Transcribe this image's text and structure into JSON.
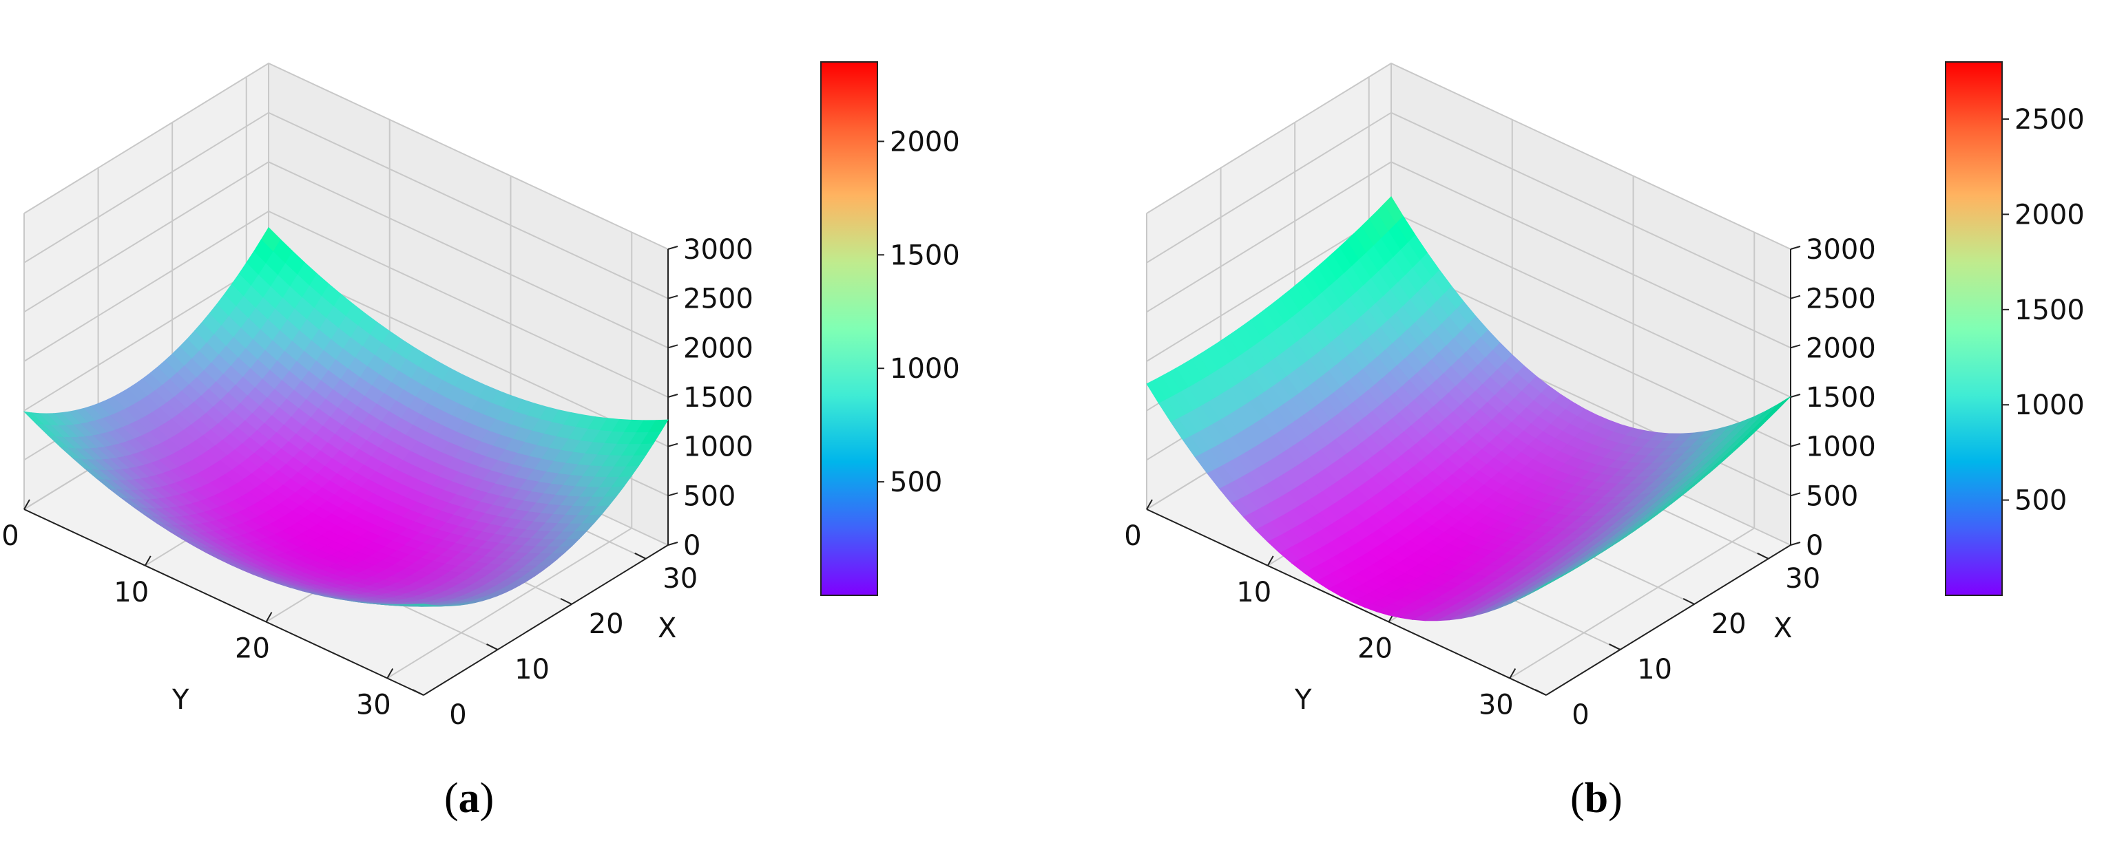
{
  "chart_data": [
    {
      "type": "surface",
      "panel_label": "a",
      "xlabel": "X",
      "ylabel": "Y",
      "x_ticks": [
        "0",
        "10",
        "20",
        "30"
      ],
      "y_ticks": [
        "0",
        "10",
        "20",
        "30"
      ],
      "z_ticks": [
        "0",
        "500",
        "1000",
        "1500",
        "2000",
        "2500",
        "3000"
      ],
      "xlim": [
        0,
        33
      ],
      "ylim": [
        0,
        33
      ],
      "zlim": [
        0,
        3000
      ],
      "grid": true,
      "colormap": "rainbow",
      "colorbar": {
        "min": 0,
        "max": 2350,
        "ticks": [
          "500",
          "1000",
          "1500",
          "2000"
        ]
      },
      "surface": {
        "shape": "paraboloid",
        "center_x": 14,
        "center_y": 17,
        "min_z": 0,
        "coef_x": 2.1,
        "coef_y": 2.0,
        "approx_max_z": 2350
      }
    },
    {
      "type": "surface",
      "panel_label": "b",
      "xlabel": "X",
      "ylabel": "Y",
      "x_ticks": [
        "0",
        "10",
        "20",
        "30"
      ],
      "y_ticks": [
        "0",
        "10",
        "20",
        "30"
      ],
      "z_ticks": [
        "0",
        "500",
        "1000",
        "1500",
        "2000",
        "2500",
        "3000"
      ],
      "xlim": [
        0,
        33
      ],
      "ylim": [
        0,
        33
      ],
      "zlim": [
        0,
        3000
      ],
      "grid": true,
      "colormap": "rainbow",
      "colorbar": {
        "min": 0,
        "max": 2800,
        "ticks": [
          "500",
          "1000",
          "1500",
          "2000",
          "2500"
        ]
      },
      "surface": {
        "shape": "parabolic-valley",
        "center_x": 7,
        "center_y": 17,
        "min_z": 0,
        "coef_x": 0.6,
        "coef_y": 4.3,
        "approx_max_z": 2800
      }
    }
  ]
}
